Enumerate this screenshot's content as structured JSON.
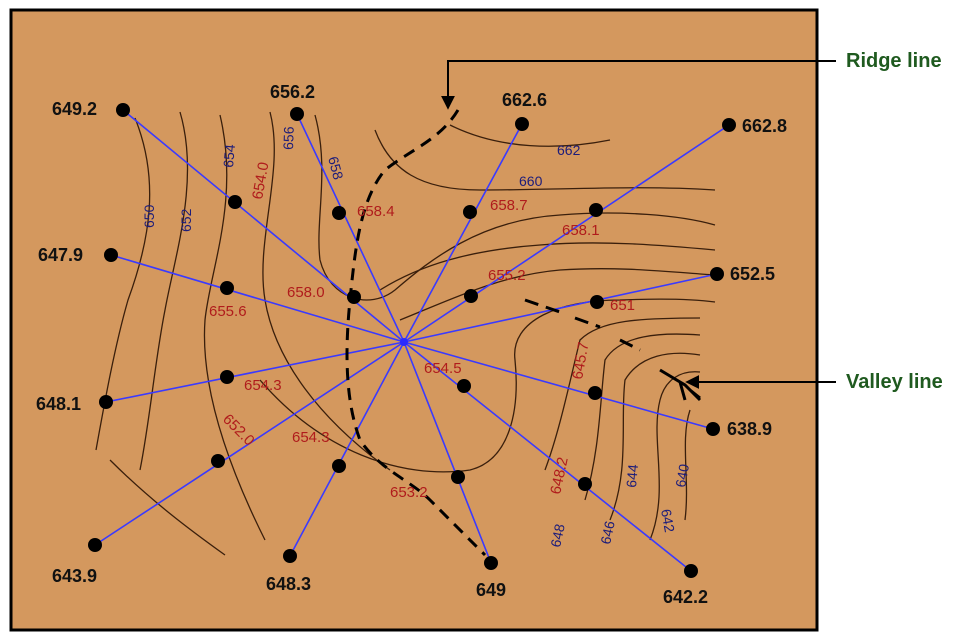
{
  "colors": {
    "background": "#d4985e",
    "border": "#000000",
    "contour": "#3a1f0c",
    "ray": "#3a3aff",
    "station_point": "#000000",
    "spot_level_text": "#b01c1c",
    "contour_label_text": "#1c1c7a",
    "outer_label_text": "#111111",
    "callout_text": "#1f5a1f",
    "ridge_line": "#000000",
    "valley_line": "#000000"
  },
  "callouts": {
    "ridge": "Ridge line",
    "valley": "Valley line"
  },
  "station_elevations": [
    "649.2",
    "656.2",
    "662.6",
    "662.8",
    "647.9",
    "652.5",
    "648.1",
    "638.9",
    "643.9",
    "648.3",
    "649",
    "642.2"
  ],
  "spot_levels": [
    "654.0",
    "658.4",
    "658.7",
    "658.1",
    "658.0",
    "655.2",
    "655.6",
    "651",
    "645.7",
    "654.3",
    "654.5",
    "654.3",
    "652.0",
    "653.2",
    "648.2"
  ],
  "contour_labels": [
    "650",
    "652",
    "654",
    "656",
    "658",
    "662",
    "660",
    "648",
    "646",
    "644",
    "642",
    "640"
  ]
}
